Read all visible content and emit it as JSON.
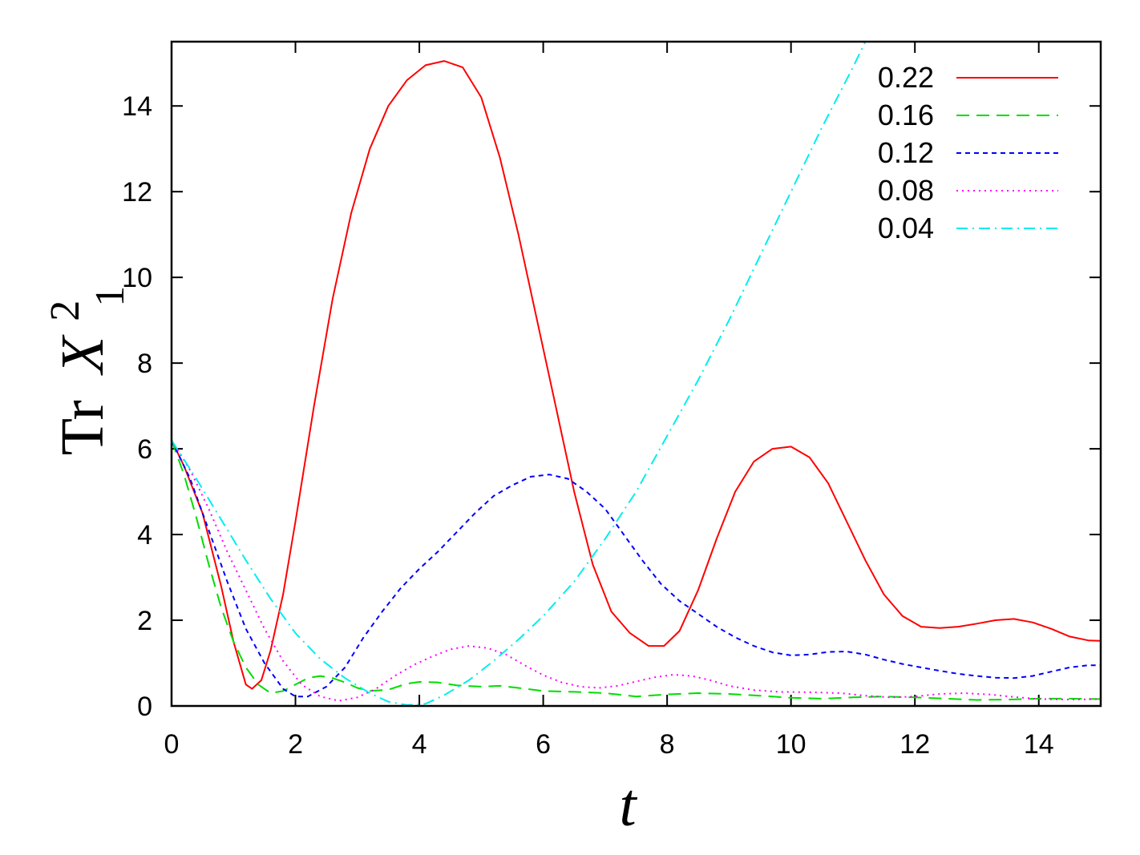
{
  "chart_data": {
    "type": "line",
    "xlabel": "t",
    "ylabel": {
      "prefix": "Tr",
      "symbol": "X",
      "superscript": "2",
      "subscript": "1"
    },
    "xlim": [
      0,
      15
    ],
    "ylim": [
      0,
      15.5
    ],
    "xticks": [
      0,
      2,
      4,
      6,
      8,
      10,
      12,
      14
    ],
    "yticks": [
      0,
      2,
      4,
      6,
      8,
      10,
      12,
      14
    ],
    "grid": false,
    "legend_position": "top-right",
    "series": [
      {
        "name": "0.22",
        "color": "#ff0000",
        "dash": "solid",
        "points": [
          [
            0,
            6.2
          ],
          [
            0.2,
            5.6
          ],
          [
            0.5,
            4.5
          ],
          [
            0.8,
            2.8
          ],
          [
            1.0,
            1.5
          ],
          [
            1.2,
            0.5
          ],
          [
            1.3,
            0.4
          ],
          [
            1.45,
            0.6
          ],
          [
            1.6,
            1.3
          ],
          [
            1.8,
            2.6
          ],
          [
            2.0,
            4.3
          ],
          [
            2.3,
            7.0
          ],
          [
            2.6,
            9.5
          ],
          [
            2.9,
            11.5
          ],
          [
            3.2,
            13.0
          ],
          [
            3.5,
            14.0
          ],
          [
            3.8,
            14.6
          ],
          [
            4.1,
            14.95
          ],
          [
            4.4,
            15.05
          ],
          [
            4.7,
            14.9
          ],
          [
            5.0,
            14.2
          ],
          [
            5.3,
            12.8
          ],
          [
            5.6,
            11.0
          ],
          [
            5.9,
            9.0
          ],
          [
            6.2,
            7.0
          ],
          [
            6.5,
            5.0
          ],
          [
            6.8,
            3.3
          ],
          [
            7.1,
            2.2
          ],
          [
            7.4,
            1.7
          ],
          [
            7.7,
            1.4
          ],
          [
            7.95,
            1.4
          ],
          [
            8.2,
            1.75
          ],
          [
            8.5,
            2.7
          ],
          [
            8.8,
            3.9
          ],
          [
            9.1,
            5.0
          ],
          [
            9.4,
            5.7
          ],
          [
            9.7,
            6.0
          ],
          [
            10.0,
            6.05
          ],
          [
            10.3,
            5.8
          ],
          [
            10.6,
            5.2
          ],
          [
            10.9,
            4.3
          ],
          [
            11.2,
            3.4
          ],
          [
            11.5,
            2.6
          ],
          [
            11.8,
            2.1
          ],
          [
            12.1,
            1.85
          ],
          [
            12.4,
            1.82
          ],
          [
            12.7,
            1.85
          ],
          [
            13.0,
            1.92
          ],
          [
            13.3,
            2.0
          ],
          [
            13.6,
            2.03
          ],
          [
            13.9,
            1.95
          ],
          [
            14.2,
            1.8
          ],
          [
            14.5,
            1.62
          ],
          [
            14.8,
            1.53
          ],
          [
            15.0,
            1.52
          ]
        ]
      },
      {
        "name": "0.16",
        "color": "#00dd00",
        "dash": "dashed",
        "points": [
          [
            0,
            6.2
          ],
          [
            0.2,
            5.4
          ],
          [
            0.4,
            4.4
          ],
          [
            0.6,
            3.3
          ],
          [
            0.8,
            2.3
          ],
          [
            1.0,
            1.5
          ],
          [
            1.2,
            0.9
          ],
          [
            1.4,
            0.5
          ],
          [
            1.6,
            0.3
          ],
          [
            1.8,
            0.35
          ],
          [
            2.0,
            0.5
          ],
          [
            2.2,
            0.65
          ],
          [
            2.4,
            0.7
          ],
          [
            2.6,
            0.65
          ],
          [
            2.8,
            0.55
          ],
          [
            3.0,
            0.42
          ],
          [
            3.2,
            0.35
          ],
          [
            3.5,
            0.38
          ],
          [
            3.8,
            0.52
          ],
          [
            4.0,
            0.56
          ],
          [
            4.3,
            0.55
          ],
          [
            4.6,
            0.48
          ],
          [
            5.0,
            0.45
          ],
          [
            5.3,
            0.47
          ],
          [
            5.6,
            0.42
          ],
          [
            6.0,
            0.35
          ],
          [
            6.5,
            0.33
          ],
          [
            7.0,
            0.3
          ],
          [
            7.5,
            0.22
          ],
          [
            8.0,
            0.27
          ],
          [
            8.5,
            0.3
          ],
          [
            9.0,
            0.28
          ],
          [
            9.5,
            0.24
          ],
          [
            10.0,
            0.19
          ],
          [
            10.5,
            0.17
          ],
          [
            11.0,
            0.2
          ],
          [
            11.5,
            0.22
          ],
          [
            12.0,
            0.2
          ],
          [
            12.5,
            0.17
          ],
          [
            13.0,
            0.14
          ],
          [
            13.5,
            0.15
          ],
          [
            14.0,
            0.17
          ],
          [
            14.5,
            0.17
          ],
          [
            15.0,
            0.16
          ]
        ]
      },
      {
        "name": "0.12",
        "color": "#0000ff",
        "dash": "short-dash",
        "points": [
          [
            0,
            6.2
          ],
          [
            0.3,
            5.3
          ],
          [
            0.6,
            4.1
          ],
          [
            0.9,
            2.9
          ],
          [
            1.2,
            1.8
          ],
          [
            1.5,
            1.0
          ],
          [
            1.8,
            0.4
          ],
          [
            2.0,
            0.22
          ],
          [
            2.2,
            0.22
          ],
          [
            2.5,
            0.45
          ],
          [
            2.8,
            0.9
          ],
          [
            3.1,
            1.6
          ],
          [
            3.4,
            2.2
          ],
          [
            3.7,
            2.75
          ],
          [
            4.0,
            3.2
          ],
          [
            4.3,
            3.6
          ],
          [
            4.6,
            4.05
          ],
          [
            4.9,
            4.5
          ],
          [
            5.2,
            4.9
          ],
          [
            5.5,
            5.15
          ],
          [
            5.8,
            5.35
          ],
          [
            6.1,
            5.4
          ],
          [
            6.4,
            5.3
          ],
          [
            6.7,
            5.0
          ],
          [
            7.0,
            4.6
          ],
          [
            7.3,
            4.0
          ],
          [
            7.6,
            3.4
          ],
          [
            7.9,
            2.85
          ],
          [
            8.2,
            2.45
          ],
          [
            8.5,
            2.15
          ],
          [
            8.8,
            1.85
          ],
          [
            9.1,
            1.6
          ],
          [
            9.4,
            1.4
          ],
          [
            9.7,
            1.25
          ],
          [
            10.0,
            1.18
          ],
          [
            10.3,
            1.2
          ],
          [
            10.6,
            1.26
          ],
          [
            10.9,
            1.27
          ],
          [
            11.2,
            1.2
          ],
          [
            11.5,
            1.08
          ],
          [
            11.8,
            0.98
          ],
          [
            12.1,
            0.9
          ],
          [
            12.4,
            0.82
          ],
          [
            12.7,
            0.75
          ],
          [
            13.0,
            0.7
          ],
          [
            13.3,
            0.66
          ],
          [
            13.6,
            0.65
          ],
          [
            13.9,
            0.7
          ],
          [
            14.2,
            0.8
          ],
          [
            14.5,
            0.9
          ],
          [
            14.8,
            0.95
          ],
          [
            15.0,
            0.95
          ]
        ]
      },
      {
        "name": "0.08",
        "color": "#ff00ff",
        "dash": "dotted",
        "points": [
          [
            0,
            6.2
          ],
          [
            0.3,
            5.5
          ],
          [
            0.6,
            4.6
          ],
          [
            0.9,
            3.6
          ],
          [
            1.2,
            2.7
          ],
          [
            1.5,
            1.8
          ],
          [
            1.8,
            1.05
          ],
          [
            2.1,
            0.5
          ],
          [
            2.4,
            0.22
          ],
          [
            2.7,
            0.12
          ],
          [
            3.0,
            0.2
          ],
          [
            3.3,
            0.4
          ],
          [
            3.6,
            0.7
          ],
          [
            3.9,
            0.95
          ],
          [
            4.2,
            1.15
          ],
          [
            4.5,
            1.32
          ],
          [
            4.8,
            1.4
          ],
          [
            5.1,
            1.35
          ],
          [
            5.4,
            1.2
          ],
          [
            5.7,
            0.95
          ],
          [
            6.0,
            0.72
          ],
          [
            6.3,
            0.55
          ],
          [
            6.6,
            0.45
          ],
          [
            6.9,
            0.42
          ],
          [
            7.2,
            0.47
          ],
          [
            7.5,
            0.57
          ],
          [
            7.8,
            0.67
          ],
          [
            8.1,
            0.73
          ],
          [
            8.4,
            0.7
          ],
          [
            8.7,
            0.6
          ],
          [
            9.0,
            0.47
          ],
          [
            9.4,
            0.37
          ],
          [
            9.8,
            0.33
          ],
          [
            10.3,
            0.32
          ],
          [
            10.8,
            0.3
          ],
          [
            11.2,
            0.24
          ],
          [
            11.6,
            0.2
          ],
          [
            12.0,
            0.22
          ],
          [
            12.4,
            0.28
          ],
          [
            12.8,
            0.3
          ],
          [
            13.2,
            0.27
          ],
          [
            13.6,
            0.21
          ],
          [
            14.0,
            0.16
          ],
          [
            14.5,
            0.15
          ],
          [
            15.0,
            0.16
          ]
        ]
      },
      {
        "name": "0.04",
        "color": "#00eeee",
        "dash": "dash-dot",
        "points": [
          [
            0,
            6.2
          ],
          [
            0.4,
            5.3
          ],
          [
            0.8,
            4.35
          ],
          [
            1.2,
            3.4
          ],
          [
            1.6,
            2.5
          ],
          [
            2.0,
            1.7
          ],
          [
            2.4,
            1.1
          ],
          [
            2.8,
            0.65
          ],
          [
            3.2,
            0.3
          ],
          [
            3.5,
            0.1
          ],
          [
            3.8,
            0.02
          ],
          [
            4.1,
            0.05
          ],
          [
            4.4,
            0.25
          ],
          [
            4.8,
            0.6
          ],
          [
            5.2,
            1.05
          ],
          [
            5.6,
            1.55
          ],
          [
            6.0,
            2.1
          ],
          [
            6.5,
            2.9
          ],
          [
            7.0,
            3.9
          ],
          [
            7.5,
            5.0
          ],
          [
            8.0,
            6.3
          ],
          [
            8.5,
            7.6
          ],
          [
            9.0,
            9.0
          ],
          [
            9.5,
            10.5
          ],
          [
            10.0,
            12.0
          ],
          [
            10.5,
            13.5
          ],
          [
            11.0,
            14.9
          ],
          [
            11.2,
            15.5
          ]
        ]
      }
    ]
  }
}
